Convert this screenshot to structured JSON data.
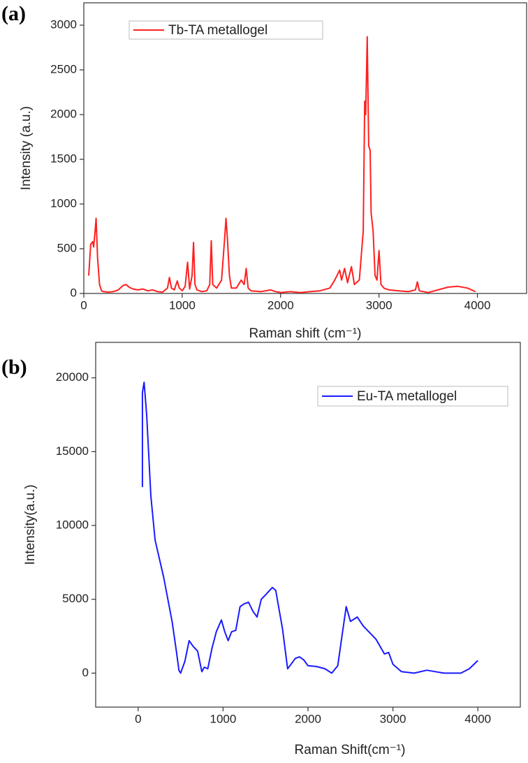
{
  "chart_data": [
    {
      "type": "line",
      "panel_label": "(a)",
      "xlabel": "Raman shift (cm⁻¹)",
      "ylabel": "Intensity (a.u.)",
      "x": [
        50,
        70,
        90,
        100,
        115,
        125,
        140,
        160,
        180,
        200,
        250,
        300,
        350,
        400,
        430,
        460,
        500,
        550,
        600,
        650,
        700,
        750,
        800,
        850,
        870,
        890,
        920,
        950,
        970,
        1000,
        1030,
        1055,
        1075,
        1100,
        1115,
        1130,
        1150,
        1200,
        1250,
        1280,
        1295,
        1310,
        1350,
        1400,
        1430,
        1445,
        1460,
        1480,
        1500,
        1550,
        1600,
        1630,
        1650,
        1670,
        1700,
        1800,
        1900,
        1950,
        2000,
        2100,
        2200,
        2300,
        2400,
        2500,
        2550,
        2600,
        2620,
        2650,
        2680,
        2720,
        2750,
        2800,
        2840,
        2855,
        2865,
        2880,
        2895,
        2910,
        2920,
        2940,
        2960,
        2980,
        3000,
        3020,
        3050,
        3100,
        3200,
        3300,
        3370,
        3390,
        3410,
        3500,
        3600,
        3700,
        3800,
        3900,
        3980
      ],
      "series": [
        {
          "name": "Tb-TA metallogel",
          "color": "#ff2020",
          "values": [
            200,
            550,
            580,
            520,
            700,
            840,
            400,
            100,
            30,
            20,
            15,
            20,
            40,
            90,
            100,
            70,
            50,
            40,
            50,
            30,
            40,
            20,
            15,
            60,
            180,
            60,
            40,
            140,
            60,
            30,
            80,
            350,
            50,
            200,
            570,
            100,
            40,
            20,
            30,
            100,
            590,
            100,
            60,
            150,
            600,
            840,
            600,
            200,
            60,
            60,
            150,
            100,
            280,
            60,
            30,
            20,
            40,
            20,
            10,
            20,
            10,
            20,
            30,
            60,
            150,
            260,
            150,
            280,
            120,
            300,
            100,
            150,
            700,
            2150,
            2000,
            2870,
            1650,
            1600,
            900,
            700,
            200,
            150,
            480,
            100,
            60,
            40,
            30,
            20,
            40,
            130,
            30,
            10,
            40,
            70,
            80,
            60,
            20
          ]
        }
      ],
      "xlim": [
        0,
        4500
      ],
      "ylim": [
        0,
        3250
      ],
      "xticks": [
        0,
        1000,
        2000,
        3000,
        4000
      ],
      "yticks": [
        0,
        500,
        1000,
        1500,
        2000,
        2500,
        3000
      ]
    },
    {
      "type": "line",
      "panel_label": "(b)",
      "xlabel": "Raman Shift(cm⁻¹)",
      "ylabel": "Intensity(a.u.)",
      "x": [
        50,
        50,
        70,
        100,
        150,
        200,
        300,
        400,
        450,
        480,
        500,
        550,
        600,
        650,
        700,
        750,
        780,
        820,
        870,
        920,
        980,
        1020,
        1060,
        1100,
        1150,
        1200,
        1250,
        1300,
        1350,
        1400,
        1450,
        1500,
        1580,
        1620,
        1700,
        1760,
        1800,
        1850,
        1900,
        1950,
        2000,
        2100,
        2200,
        2280,
        2350,
        2400,
        2450,
        2500,
        2580,
        2650,
        2800,
        2900,
        2950,
        3000,
        3100,
        3250,
        3400,
        3500,
        3600,
        3800,
        3900,
        4000
      ],
      "series": [
        {
          "name": "Eu-TA metallogel",
          "color": "#1a1aff",
          "values": [
            12600,
            19000,
            19700,
            17500,
            12000,
            9000,
            6500,
            3500,
            1500,
            200,
            0,
            800,
            2200,
            1800,
            1500,
            100,
            400,
            300,
            1700,
            2800,
            3600,
            2800,
            2200,
            2800,
            2900,
            4500,
            4700,
            4800,
            4200,
            3800,
            5000,
            5300,
            5800,
            5600,
            3000,
            300,
            600,
            1000,
            1100,
            900,
            500,
            450,
            300,
            0,
            500,
            2500,
            4500,
            3500,
            3800,
            3200,
            2300,
            1300,
            1400,
            600,
            100,
            0,
            200,
            100,
            0,
            0,
            300,
            850
          ]
        }
      ],
      "xlim": [
        -500,
        4500
      ],
      "ylim": [
        -2300,
        22400
      ],
      "xticks": [
        0,
        1000,
        2000,
        3000,
        4000
      ],
      "yticks": [
        0,
        5000,
        10000,
        15000,
        20000
      ]
    }
  ]
}
